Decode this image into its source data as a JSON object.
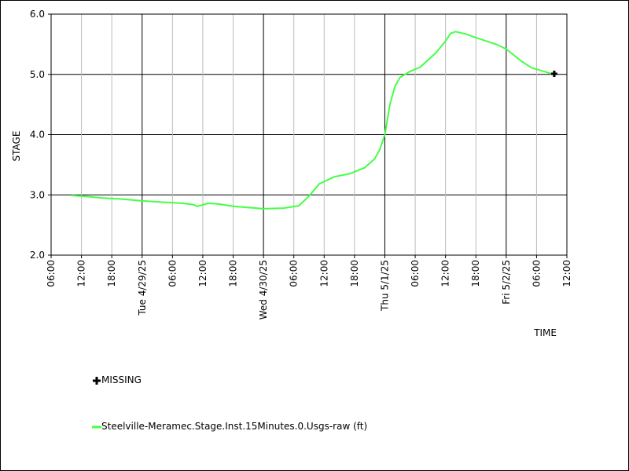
{
  "chart_data": {
    "type": "line",
    "title": "",
    "xlabel": "TIME",
    "ylabel": "STAGE",
    "ylim": [
      2.0,
      6.0
    ],
    "xlim": [
      "2025-04-28 06:00",
      "2025-05-02 12:00"
    ],
    "y_ticks": [
      "2.0",
      "3.0",
      "4.0",
      "5.0",
      "6.0"
    ],
    "x_ticks": [
      {
        "t": "2025-04-28 06:00",
        "label": "06:00",
        "major": false
      },
      {
        "t": "2025-04-28 12:00",
        "label": "12:00",
        "major": false
      },
      {
        "t": "2025-04-28 18:00",
        "label": "18:00",
        "major": false
      },
      {
        "t": "2025-04-29 00:00",
        "label": "Tue 4/29/25",
        "major": true
      },
      {
        "t": "2025-04-29 06:00",
        "label": "06:00",
        "major": false
      },
      {
        "t": "2025-04-29 12:00",
        "label": "12:00",
        "major": false
      },
      {
        "t": "2025-04-29 18:00",
        "label": "18:00",
        "major": false
      },
      {
        "t": "2025-04-30 00:00",
        "label": "Wed 4/30/25",
        "major": true
      },
      {
        "t": "2025-04-30 06:00",
        "label": "06:00",
        "major": false
      },
      {
        "t": "2025-04-30 12:00",
        "label": "12:00",
        "major": false
      },
      {
        "t": "2025-04-30 18:00",
        "label": "18:00",
        "major": false
      },
      {
        "t": "2025-05-01 00:00",
        "label": "Thu 5/1/25",
        "major": true
      },
      {
        "t": "2025-05-01 06:00",
        "label": "06:00",
        "major": false
      },
      {
        "t": "2025-05-01 12:00",
        "label": "12:00",
        "major": false
      },
      {
        "t": "2025-05-01 18:00",
        "label": "18:00",
        "major": false
      },
      {
        "t": "2025-05-02 00:00",
        "label": "Fri 5/2/25",
        "major": true
      },
      {
        "t": "2025-05-02 06:00",
        "label": "06:00",
        "major": false
      },
      {
        "t": "2025-05-02 12:00",
        "label": "12:00",
        "major": false
      }
    ],
    "grid": true,
    "series": [
      {
        "name": "Steelville-Meramec.Stage.Inst.15Minutes.0.Usgs-raw (ft)",
        "color": "#44ff44",
        "points": [
          [
            "2025-04-28 10:00",
            2.99
          ],
          [
            "2025-04-28 12:00",
            2.98
          ],
          [
            "2025-04-28 16:00",
            2.95
          ],
          [
            "2025-04-28 20:00",
            2.93
          ],
          [
            "2025-04-29 00:00",
            2.9
          ],
          [
            "2025-04-29 04:00",
            2.88
          ],
          [
            "2025-04-29 08:00",
            2.86
          ],
          [
            "2025-04-29 10:00",
            2.84
          ],
          [
            "2025-04-29 11:00",
            2.81
          ],
          [
            "2025-04-29 13:00",
            2.86
          ],
          [
            "2025-04-29 15:00",
            2.85
          ],
          [
            "2025-04-29 18:00",
            2.81
          ],
          [
            "2025-04-29 21:00",
            2.79
          ],
          [
            "2025-04-30 00:00",
            2.77
          ],
          [
            "2025-04-30 04:00",
            2.78
          ],
          [
            "2025-04-30 07:00",
            2.82
          ],
          [
            "2025-04-30 09:00",
            2.98
          ],
          [
            "2025-04-30 11:00",
            3.18
          ],
          [
            "2025-04-30 14:00",
            3.3
          ],
          [
            "2025-04-30 17:00",
            3.35
          ],
          [
            "2025-04-30 20:00",
            3.45
          ],
          [
            "2025-04-30 22:00",
            3.6
          ],
          [
            "2025-04-30 23:00",
            3.75
          ],
          [
            "2025-05-01 00:00",
            4.0
          ],
          [
            "2025-05-01 01:00",
            4.5
          ],
          [
            "2025-05-01 02:00",
            4.8
          ],
          [
            "2025-05-01 03:00",
            4.95
          ],
          [
            "2025-05-01 05:00",
            5.05
          ],
          [
            "2025-05-01 07:00",
            5.12
          ],
          [
            "2025-05-01 10:00",
            5.35
          ],
          [
            "2025-05-01 12:00",
            5.55
          ],
          [
            "2025-05-01 13:00",
            5.68
          ],
          [
            "2025-05-01 14:00",
            5.71
          ],
          [
            "2025-05-01 16:00",
            5.67
          ],
          [
            "2025-05-01 18:00",
            5.61
          ],
          [
            "2025-05-01 22:00",
            5.5
          ],
          [
            "2025-05-02 00:00",
            5.42
          ],
          [
            "2025-05-02 03:00",
            5.22
          ],
          [
            "2025-05-02 05:00",
            5.11
          ],
          [
            "2025-05-02 07:00",
            5.06
          ],
          [
            "2025-05-02 09:00",
            5.01
          ]
        ]
      }
    ],
    "missing": {
      "label": "MISSING",
      "points": [
        [
          "2025-05-02 09:30",
          5.01
        ]
      ]
    }
  }
}
